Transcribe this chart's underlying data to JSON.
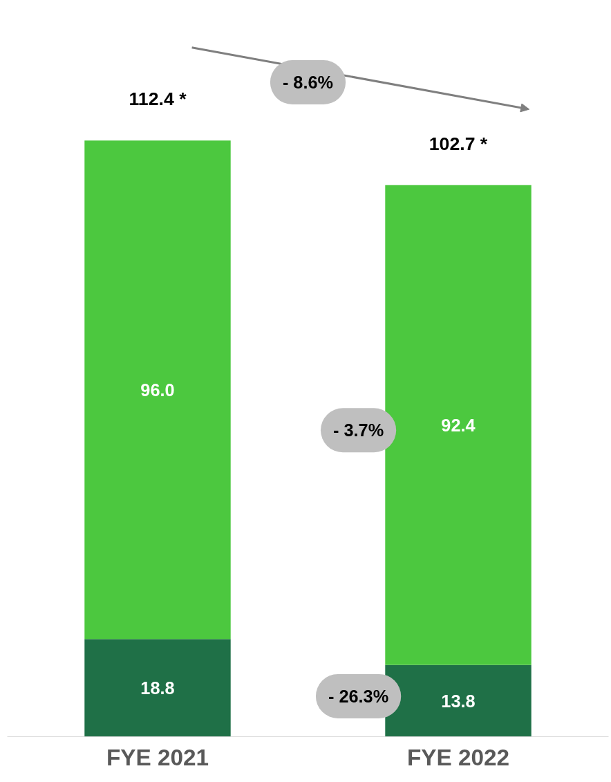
{
  "chart_data": {
    "type": "bar",
    "stacked": true,
    "categories": [
      "FYE 2021",
      "FYE 2022"
    ],
    "series": [
      {
        "color": "#1f7047",
        "values": [
          18.8,
          13.8
        ],
        "value_labels": [
          "18.8",
          "13.8"
        ]
      },
      {
        "color": "#4cc83f",
        "values": [
          96.0,
          92.4
        ],
        "value_labels": [
          "96.0",
          "92.4"
        ]
      }
    ],
    "annotations": [
      "112.4 *",
      "102.7 *",
      "- 8.6%",
      "- 3.7%",
      "- 26.3%"
    ],
    "tick_labels": "x",
    "grid": false
  }
}
